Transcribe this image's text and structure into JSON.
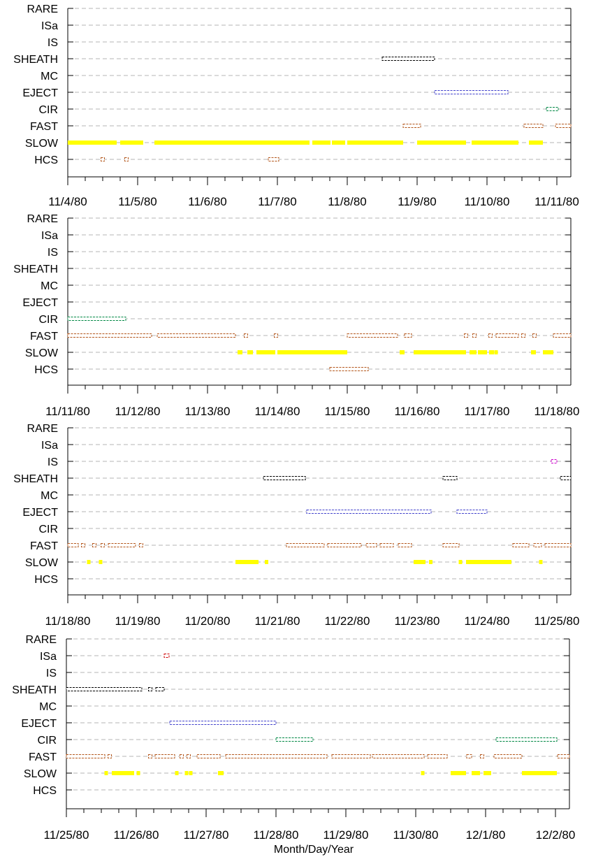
{
  "chart_data": {
    "type": "scatter",
    "xlabel": "Month/Day/Year",
    "categories": [
      "RARE",
      "ISa",
      "IS",
      "SHEATH",
      "MC",
      "EJECT",
      "CIR",
      "FAST",
      "SLOW",
      "HCS"
    ],
    "colors": {
      "RARE": "#000000",
      "ISa": "#cc0000",
      "IS": "#cc00cc",
      "SHEATH": "#000000",
      "MC": "#000000",
      "EJECT": "#4444cc",
      "CIR": "#008844",
      "FAST": "#b4581e",
      "SLOW": "#ffff00",
      "HCS": "#b4581e"
    },
    "grid": "dashed-horizontal",
    "panels": [
      {
        "x_tick_labels": [
          "11/4/80",
          "11/5/80",
          "11/6/80",
          "11/7/80",
          "11/8/80",
          "11/9/80",
          "11/10/80",
          "11/11/80"
        ],
        "series": [
          {
            "category": "SHEATH",
            "segments": [
              [
                4.5,
                5.25
              ]
            ]
          },
          {
            "category": "EJECT",
            "segments": [
              [
                5.25,
                6.3
              ]
            ]
          },
          {
            "category": "CIR",
            "segments": [
              [
                6.85,
                7.02
              ]
            ]
          },
          {
            "category": "FAST",
            "segments": [
              [
                4.8,
                5.05
              ],
              [
                6.53,
                6.8
              ],
              [
                6.98,
                7.2
              ]
            ]
          },
          {
            "category": "SLOW",
            "segments": [
              [
                0.0,
                0.7
              ],
              [
                0.75,
                1.08
              ],
              [
                1.24,
                3.46
              ],
              [
                3.5,
                3.76
              ],
              [
                3.78,
                3.97
              ],
              [
                4.0,
                4.8
              ],
              [
                5.0,
                5.7
              ],
              [
                5.78,
                6.45
              ],
              [
                6.6,
                6.8
              ]
            ]
          },
          {
            "category": "HCS",
            "segments": [
              [
                0.5,
                0.5
              ],
              [
                0.84,
                0.84
              ],
              [
                2.87,
                3.02
              ]
            ]
          }
        ]
      },
      {
        "x_tick_labels": [
          "11/11/80",
          "11/12/80",
          "11/13/80",
          "11/14/80",
          "11/15/80",
          "11/16/80",
          "11/17/80",
          "11/18/80"
        ],
        "series": [
          {
            "category": "CIR",
            "segments": [
              [
                0.0,
                0.83
              ]
            ]
          },
          {
            "category": "FAST",
            "segments": [
              [
                0.0,
                1.2
              ],
              [
                1.28,
                2.4
              ],
              [
                2.55,
                2.55
              ],
              [
                2.98,
                2.98
              ],
              [
                4.0,
                4.72
              ],
              [
                4.82,
                4.92
              ],
              [
                5.7,
                5.7
              ],
              [
                5.82,
                5.82
              ],
              [
                6.05,
                6.05
              ],
              [
                6.13,
                6.45
              ],
              [
                6.52,
                6.52
              ],
              [
                6.68,
                6.68
              ],
              [
                6.95,
                7.2
              ]
            ]
          },
          {
            "category": "SLOW",
            "segments": [
              [
                2.43,
                2.5
              ],
              [
                2.57,
                2.65
              ],
              [
                2.7,
                2.97
              ],
              [
                3.0,
                4.0
              ],
              [
                4.75,
                4.82
              ],
              [
                4.95,
                5.7
              ],
              [
                5.75,
                5.85
              ],
              [
                5.87,
                6.0
              ],
              [
                6.03,
                6.1
              ],
              [
                6.13,
                6.15
              ],
              [
                6.63,
                6.7
              ],
              [
                6.8,
                6.95
              ]
            ]
          },
          {
            "category": "HCS",
            "segments": [
              [
                3.75,
                4.3
              ]
            ]
          }
        ]
      },
      {
        "x_tick_labels": [
          "11/18/80",
          "11/19/80",
          "11/20/80",
          "11/21/80",
          "11/22/80",
          "11/23/80",
          "11/24/80",
          "11/25/80"
        ],
        "series": [
          {
            "category": "IS",
            "segments": [
              [
                6.92,
                7.0
              ]
            ]
          },
          {
            "category": "SHEATH",
            "segments": [
              [
                2.8,
                3.4
              ],
              [
                5.37,
                5.57
              ],
              [
                7.05,
                7.2
              ]
            ]
          },
          {
            "category": "EJECT",
            "segments": [
              [
                3.42,
                5.2
              ],
              [
                5.57,
                6.0
              ]
            ]
          },
          {
            "category": "FAST",
            "segments": [
              [
                0.0,
                0.15
              ],
              [
                0.22,
                0.22
              ],
              [
                0.38,
                0.38
              ],
              [
                0.5,
                0.5
              ],
              [
                0.58,
                0.97
              ],
              [
                1.05,
                1.05
              ],
              [
                3.13,
                3.67
              ],
              [
                3.72,
                4.2
              ],
              [
                4.27,
                4.42
              ],
              [
                4.47,
                4.66
              ],
              [
                4.73,
                4.92
              ],
              [
                5.37,
                5.6
              ],
              [
                6.37,
                6.6
              ],
              [
                6.67,
                6.78
              ],
              [
                6.83,
                7.2
              ]
            ]
          },
          {
            "category": "SLOW",
            "segments": [
              [
                0.3,
                0.3
              ],
              [
                0.47,
                0.47
              ],
              [
                2.4,
                2.73
              ],
              [
                2.82,
                2.87
              ],
              [
                4.95,
                5.12
              ],
              [
                5.17,
                5.22
              ],
              [
                5.62,
                5.62
              ],
              [
                5.7,
                6.35
              ],
              [
                6.77,
                6.77
              ]
            ]
          }
        ]
      },
      {
        "x_tick_labels": [
          "11/25/80",
          "11/26/80",
          "11/27/80",
          "11/28/80",
          "11/29/80",
          "11/30/80",
          "12/1/80",
          "12/2/80"
        ],
        "series": [
          {
            "category": "ISa",
            "segments": [
              [
                1.4,
                1.47
              ]
            ]
          },
          {
            "category": "SHEATH",
            "segments": [
              [
                0.0,
                1.08
              ],
              [
                1.2,
                1.2
              ],
              [
                1.28,
                1.4
              ]
            ]
          },
          {
            "category": "EJECT",
            "segments": [
              [
                1.48,
                3.0
              ]
            ]
          },
          {
            "category": "CIR",
            "segments": [
              [
                3.0,
                3.53
              ],
              [
                6.15,
                7.02
              ]
            ]
          },
          {
            "category": "FAST",
            "segments": [
              [
                0.0,
                0.55
              ],
              [
                0.62,
                0.62
              ],
              [
                1.2,
                1.2
              ],
              [
                1.27,
                1.55
              ],
              [
                1.65,
                1.65
              ],
              [
                1.75,
                1.75
              ],
              [
                1.87,
                2.2
              ],
              [
                2.28,
                3.73
              ],
              [
                3.8,
                4.35
              ],
              [
                4.38,
                5.12
              ],
              [
                5.17,
                5.45
              ],
              [
                5.73,
                5.8
              ],
              [
                5.95,
                5.95
              ],
              [
                6.12,
                6.52
              ],
              [
                7.03,
                7.2
              ]
            ]
          },
          {
            "category": "SLOW",
            "segments": [
              [
                0.57,
                0.57
              ],
              [
                0.65,
                0.97
              ],
              [
                1.03,
                1.03
              ],
              [
                1.58,
                1.58
              ],
              [
                1.72,
                1.72
              ],
              [
                1.78,
                1.82
              ],
              [
                2.17,
                2.25
              ],
              [
                5.1,
                5.1
              ],
              [
                5.5,
                5.72
              ],
              [
                5.8,
                5.92
              ],
              [
                5.97,
                6.08
              ],
              [
                6.52,
                7.02
              ]
            ]
          }
        ]
      }
    ]
  }
}
